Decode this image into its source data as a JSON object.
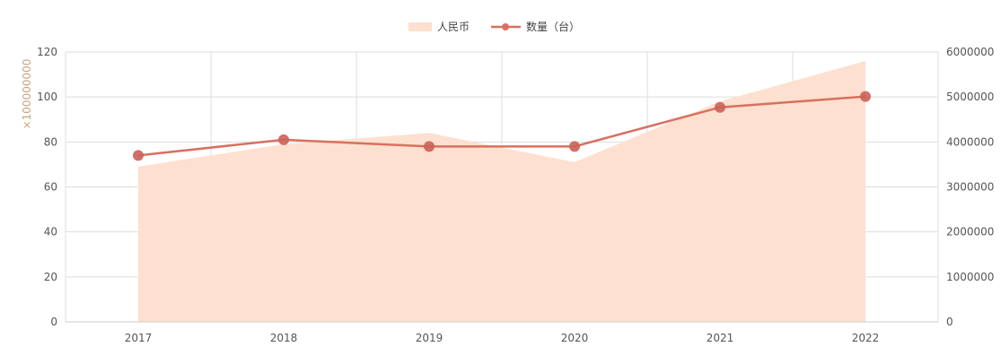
{
  "chart_data": {
    "type": "line",
    "categories": [
      "2017",
      "2018",
      "2019",
      "2020",
      "2021",
      "2022"
    ],
    "series": [
      {
        "name": "人民币",
        "chart_type": "area",
        "axis": "left",
        "color": "#fde0cf",
        "values": [
          69,
          79,
          84,
          71,
          98,
          116
        ]
      },
      {
        "name": "数量（台）",
        "chart_type": "line",
        "axis": "right",
        "color": "#d9705f",
        "values": [
          3700000,
          4050000,
          3900000,
          3900000,
          4770000,
          5010000
        ]
      }
    ],
    "left_axis": {
      "unit_label": "×100000000",
      "ylim": [
        0,
        120
      ],
      "ticks": [
        "0",
        "20",
        "40",
        "60",
        "80",
        "100",
        "120"
      ]
    },
    "right_axis": {
      "ylim": [
        0,
        6000000
      ],
      "ticks": [
        "0",
        "1000000",
        "2000000",
        "3000000",
        "4000000",
        "5000000",
        "6000000"
      ]
    },
    "legend_position": "top-center",
    "grid": true
  }
}
